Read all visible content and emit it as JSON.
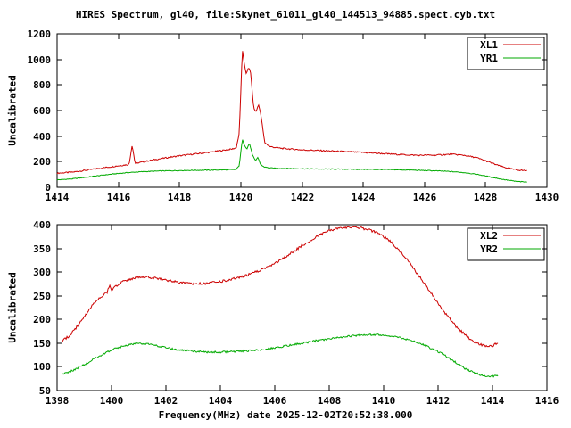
{
  "title": "HIRES Spectrum, gl40, file:Skynet_61011_gl40_144513_94885.spect.cyb.txt",
  "xlabel": "Frequency(MHz) date 2025-12-02T20:52:38.000",
  "colors": {
    "red": "#cc0000",
    "green": "#00aa00",
    "axis": "#000000",
    "background": "#ffffff"
  },
  "chart_data": [
    {
      "type": "line",
      "title": "",
      "ylabel": "Uncalibrated",
      "xlabel": "",
      "xlim": [
        1414,
        1430
      ],
      "ylim": [
        0,
        1200
      ],
      "xticks": [
        1414,
        1416,
        1418,
        1420,
        1422,
        1424,
        1426,
        1428,
        1430
      ],
      "yticks": [
        0,
        200,
        400,
        600,
        800,
        1000,
        1200
      ],
      "grid": false,
      "legend_position": "top-right",
      "series": [
        {
          "name": "XL1",
          "color": "#cc0000",
          "noise": 5,
          "x": [
            1414.0,
            1414.5,
            1415.0,
            1415.5,
            1416.0,
            1416.35,
            1416.45,
            1416.55,
            1417.0,
            1417.5,
            1418.0,
            1418.5,
            1419.0,
            1419.4,
            1419.7,
            1419.85,
            1419.95,
            1420.05,
            1420.1,
            1420.18,
            1420.25,
            1420.32,
            1420.42,
            1420.5,
            1420.58,
            1420.66,
            1420.78,
            1420.95,
            1421.3,
            1422.0,
            1423.0,
            1424.0,
            1425.0,
            1425.8,
            1426.4,
            1426.9,
            1427.3,
            1427.7,
            1428.1,
            1428.5,
            1428.9,
            1429.2,
            1429.35
          ],
          "y": [
            110,
            118,
            135,
            152,
            168,
            178,
            330,
            186,
            208,
            228,
            246,
            260,
            274,
            288,
            298,
            308,
            420,
            1075,
            990,
            880,
            940,
            900,
            620,
            590,
            650,
            560,
            350,
            318,
            305,
            292,
            283,
            272,
            258,
            250,
            252,
            258,
            250,
            232,
            198,
            163,
            140,
            132,
            130
          ]
        },
        {
          "name": "YR1",
          "color": "#00aa00",
          "noise": 3,
          "x": [
            1414.0,
            1414.5,
            1415.0,
            1415.5,
            1416.0,
            1416.5,
            1417.0,
            1417.5,
            1418.0,
            1419.0,
            1419.5,
            1419.85,
            1419.95,
            1420.05,
            1420.12,
            1420.2,
            1420.28,
            1420.38,
            1420.48,
            1420.56,
            1420.64,
            1420.75,
            1420.9,
            1421.2,
            1421.8,
            1422.5,
            1423.5,
            1424.5,
            1425.5,
            1426.2,
            1426.8,
            1427.3,
            1427.8,
            1428.2,
            1428.6,
            1429.0,
            1429.35
          ],
          "y": [
            58,
            66,
            80,
            95,
            108,
            118,
            124,
            128,
            131,
            134,
            136,
            139,
            170,
            375,
            330,
            300,
            345,
            255,
            205,
            235,
            180,
            160,
            152,
            148,
            146,
            143,
            141,
            139,
            135,
            130,
            124,
            115,
            98,
            78,
            60,
            46,
            40
          ]
        }
      ]
    },
    {
      "type": "line",
      "title": "",
      "ylabel": "Uncalibrated",
      "xlabel": "Frequency(MHz) date 2025-12-02T20:52:38.000",
      "xlim": [
        1398,
        1416
      ],
      "ylim": [
        50,
        400
      ],
      "xticks": [
        1398,
        1400,
        1402,
        1404,
        1406,
        1408,
        1410,
        1412,
        1414,
        1416
      ],
      "yticks": [
        50,
        100,
        150,
        200,
        250,
        300,
        350,
        400
      ],
      "grid": false,
      "legend_position": "top-right",
      "series": [
        {
          "name": "XL2",
          "color": "#cc0000",
          "noise": 2.5,
          "x": [
            1398.2,
            1398.5,
            1399.0,
            1399.4,
            1399.7,
            1399.85,
            1399.92,
            1400.0,
            1400.2,
            1400.5,
            1400.8,
            1401.1,
            1401.4,
            1401.8,
            1402.2,
            1402.6,
            1403.0,
            1403.5,
            1404.0,
            1404.5,
            1405.0,
            1405.5,
            1406.0,
            1406.5,
            1407.0,
            1407.5,
            1408.0,
            1408.4,
            1408.8,
            1409.1,
            1409.5,
            1409.9,
            1410.3,
            1410.7,
            1411.1,
            1411.5,
            1411.9,
            1412.3,
            1412.7,
            1413.1,
            1413.4,
            1413.7,
            1414.0,
            1414.2
          ],
          "y": [
            155,
            168,
            205,
            238,
            252,
            258,
            272,
            262,
            272,
            282,
            287,
            290,
            289,
            285,
            281,
            277,
            275,
            276,
            280,
            286,
            294,
            305,
            318,
            336,
            356,
            374,
            387,
            393,
            395,
            394,
            389,
            379,
            362,
            338,
            308,
            276,
            243,
            210,
            183,
            162,
            150,
            145,
            144,
            151
          ]
        },
        {
          "name": "YR2",
          "color": "#00aa00",
          "noise": 2,
          "x": [
            1398.2,
            1398.6,
            1399.0,
            1399.4,
            1399.8,
            1400.2,
            1400.6,
            1401.0,
            1401.4,
            1401.8,
            1402.2,
            1402.6,
            1403.0,
            1403.5,
            1404.0,
            1404.5,
            1405.0,
            1405.5,
            1406.0,
            1406.5,
            1407.0,
            1407.5,
            1408.0,
            1408.5,
            1409.0,
            1409.5,
            1410.0,
            1410.5,
            1411.0,
            1411.4,
            1411.8,
            1412.2,
            1412.6,
            1413.0,
            1413.4,
            1413.7,
            1414.0,
            1414.2
          ],
          "y": [
            84,
            93,
            105,
            118,
            130,
            140,
            146,
            150,
            148,
            143,
            138,
            135,
            133,
            131,
            131,
            132,
            134,
            136,
            140,
            145,
            150,
            155,
            159,
            163,
            166,
            168,
            167,
            163,
            156,
            148,
            138,
            126,
            111,
            96,
            86,
            81,
            80,
            82
          ]
        }
      ]
    }
  ]
}
